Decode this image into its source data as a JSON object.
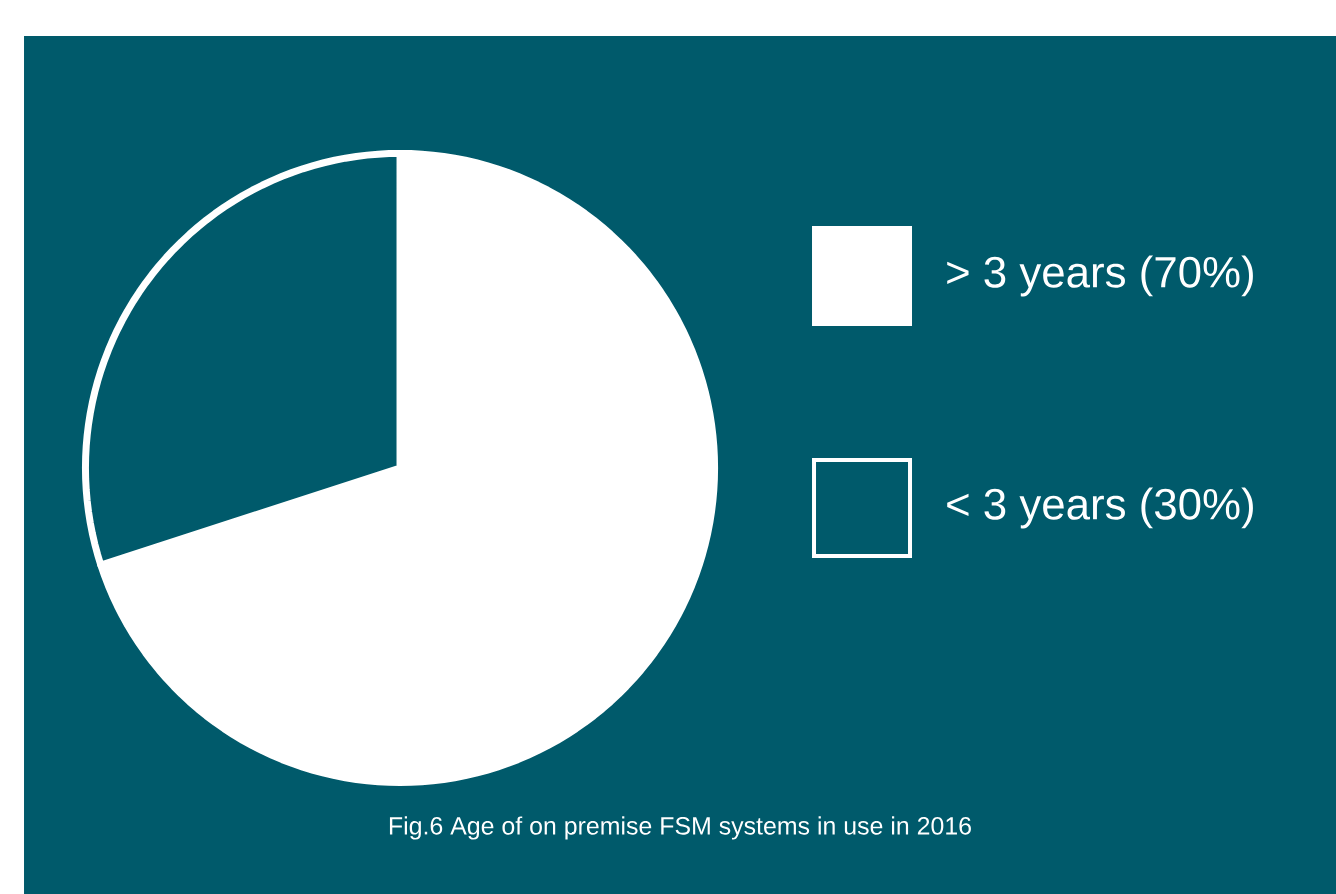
{
  "chart_data": {
    "type": "pie",
    "categories": [
      "> 3 years (70%)",
      "< 3 years (30%)"
    ],
    "values": [
      70,
      30
    ],
    "colors": [
      "#ffffff",
      "#005a6b"
    ],
    "legend": "right",
    "annotations": [
      "Fig.6 Age of on premise FSM systems in use in 2016"
    ]
  }
}
